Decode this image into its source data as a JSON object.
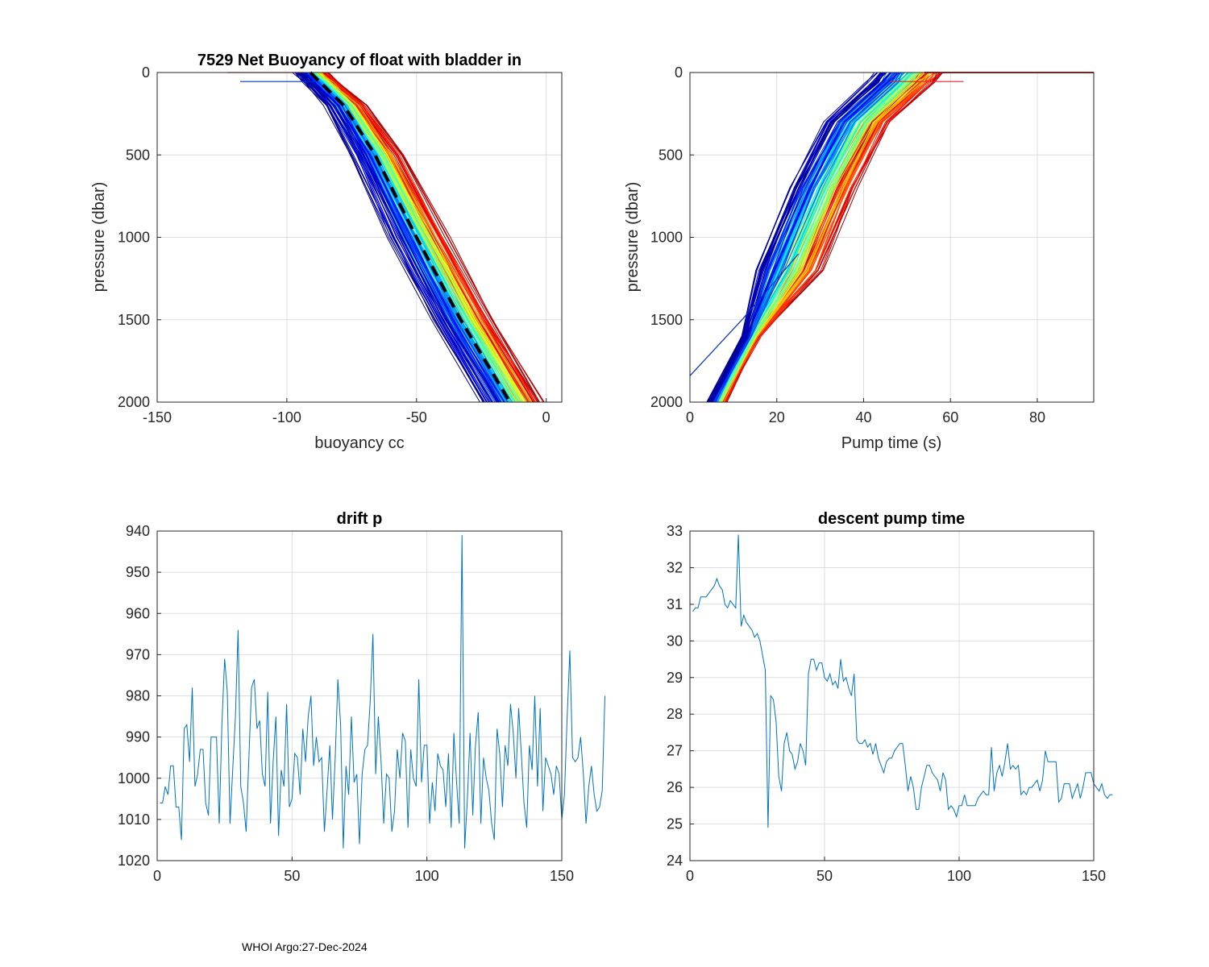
{
  "footer": "WHOI Argo:27-Dec-2024",
  "chart_data": [
    {
      "id": "buoyancy",
      "type": "line",
      "title": "7529 Net Buoyancy of float with bladder in",
      "xlabel": "buoyancy cc",
      "ylabel": "pressure (dbar)",
      "xlim": [
        -150,
        6
      ],
      "ylim": [
        0,
        2000
      ],
      "y_reversed": true,
      "xticks": [
        -150,
        -100,
        -50,
        0
      ],
      "yticks": [
        0,
        500,
        1000,
        1500,
        2000
      ],
      "grid": true,
      "series_note": "~150 profiles colored by cycle (jet colormap, early=blue, late=red)",
      "profile_nodes": {
        "p": [
          0,
          60,
          200,
          500,
          1000,
          1500,
          2000
        ],
        "mean_x": [
          -91,
          -87,
          -78,
          -66,
          -50,
          -33,
          -14
        ]
      },
      "reference_series": {
        "name": "mean",
        "style": "black dashed",
        "x": [
          -91,
          -87,
          -78,
          -66,
          -50,
          -33,
          -14
        ],
        "p": [
          0,
          60,
          200,
          500,
          1000,
          1500,
          2000
        ]
      },
      "outliers": [
        {
          "x": [
            -123,
            -93
          ],
          "p": [
            0,
            0
          ]
        },
        {
          "x": [
            -118,
            -93,
            -88
          ],
          "p": [
            55,
            55,
            55
          ]
        }
      ]
    },
    {
      "id": "pump",
      "type": "line",
      "title": "",
      "xlabel": "Pump time (s)",
      "ylabel": "pressure (dbar)",
      "xlim": [
        0,
        93
      ],
      "ylim": [
        0,
        2000
      ],
      "y_reversed": true,
      "xticks": [
        0,
        20,
        40,
        60,
        80
      ],
      "yticks": [
        0,
        500,
        1000,
        1500,
        2000
      ],
      "grid": true,
      "series_note": "~150 profiles colored by cycle (jet colormap)",
      "profile_nodes": {
        "p": [
          0,
          60,
          300,
          700,
          1200,
          1600,
          2000
        ],
        "mean_x": [
          50,
          48,
          38,
          30,
          22,
          14,
          6
        ]
      },
      "surface_line": {
        "x": [
          54,
          93
        ],
        "p": [
          0,
          0
        ]
      },
      "outliers": [
        {
          "x": [
            46,
            63
          ],
          "p": [
            55,
            55
          ]
        },
        {
          "x": [
            0,
            12,
            25
          ],
          "p": [
            1840,
            1500,
            1100
          ]
        }
      ]
    },
    {
      "id": "drift",
      "type": "line",
      "title": "drift p",
      "xlabel": "",
      "ylabel": "",
      "xlim": [
        0,
        150
      ],
      "ylim": [
        940,
        1020
      ],
      "y_reversed": true,
      "xticks": [
        0,
        50,
        100,
        150
      ],
      "yticks": [
        940,
        950,
        960,
        970,
        980,
        990,
        1000,
        1010,
        1020
      ],
      "grid": true,
      "series": [
        {
          "name": "drift p",
          "color": "#0072BD",
          "values": [
            1006,
            1006,
            1002,
            1004,
            997,
            997,
            1007,
            1007,
            1015,
            988,
            987,
            996,
            978,
            1002,
            999,
            993,
            993,
            1006,
            1009,
            990,
            990,
            990,
            1011,
            987,
            971,
            979,
            1011,
            998,
            985,
            964,
            1002,
            1006,
            1013,
            995,
            978,
            976,
            988,
            986,
            999,
            1002,
            979,
            1011,
            996,
            985,
            1014,
            998,
            1002,
            982,
            1007,
            1005,
            994,
            995,
            1004,
            988,
            996,
            985,
            980,
            997,
            990,
            996,
            995,
            1013,
            1003,
            992,
            1010,
            995,
            976,
            987,
            1017,
            997,
            1004,
            985,
            1001,
            999,
            1016,
            999,
            993,
            992,
            981,
            965,
            999,
            985,
            996,
            1011,
            999,
            1000,
            1013,
            1008,
            993,
            1000,
            989,
            991,
            1012,
            993,
            1000,
            1002,
            976,
            1001,
            992,
            992,
            1011,
            1001,
            1008,
            994,
            997,
            998,
            1007,
            994,
            1012,
            989,
            1001,
            1011,
            941,
            1017,
            1005,
            989,
            1009,
            992,
            984,
            1011,
            995,
            1000,
            1003,
            1011,
            1015,
            988,
            994,
            1007,
            992,
            997,
            982,
            989,
            1000,
            983,
            994,
            1006,
            1012,
            992,
            998,
            980,
            1002,
            983,
            1008,
            995,
            997,
            999,
            1004,
            997,
            999,
            1010,
            1004,
            985,
            969,
            995,
            996,
            995,
            990,
            999,
            1011,
            1002,
            997,
            1004,
            1008,
            1007,
            1003,
            980
          ]
        }
      ]
    },
    {
      "id": "descent",
      "type": "line",
      "title": "descent pump time",
      "xlabel": "",
      "ylabel": "",
      "xlim": [
        0,
        150
      ],
      "ylim": [
        24,
        33
      ],
      "y_reversed": false,
      "xticks": [
        0,
        50,
        100,
        150
      ],
      "yticks": [
        24,
        25,
        26,
        27,
        28,
        29,
        30,
        31,
        32,
        33
      ],
      "grid": true,
      "series": [
        {
          "name": "descent pump time",
          "color": "#0072BD",
          "values": [
            30.8,
            30.9,
            30.9,
            31.2,
            31.2,
            31.2,
            31.3,
            31.4,
            31.5,
            31.7,
            31.5,
            31.4,
            31.0,
            30.9,
            31.1,
            31.0,
            30.9,
            32.9,
            30.4,
            30.7,
            30.5,
            30.4,
            30.3,
            30.1,
            30.2,
            30.0,
            29.6,
            29.2,
            24.9,
            28.5,
            28.4,
            27.8,
            26.3,
            25.9,
            27.2,
            27.5,
            27.0,
            26.9,
            26.5,
            26.7,
            27.2,
            27.0,
            26.6,
            29.1,
            29.5,
            29.5,
            29.2,
            29.4,
            29.4,
            29.0,
            28.9,
            29.1,
            28.8,
            28.9,
            28.7,
            29.5,
            28.9,
            29.0,
            28.7,
            28.5,
            29.1,
            27.3,
            27.2,
            27.2,
            27.3,
            27.1,
            27.2,
            26.9,
            27.2,
            26.8,
            26.6,
            26.4,
            26.7,
            26.8,
            26.8,
            27.0,
            27.1,
            27.2,
            27.2,
            26.6,
            25.9,
            26.3,
            26.0,
            25.4,
            25.4,
            26.0,
            26.3,
            26.6,
            26.6,
            26.4,
            26.3,
            26.2,
            25.9,
            26.4,
            26.2,
            25.4,
            25.5,
            25.4,
            25.2,
            25.5,
            25.5,
            25.8,
            25.5,
            25.5,
            25.5,
            25.5,
            25.7,
            25.8,
            25.9,
            25.8,
            25.8,
            27.1,
            25.9,
            26.4,
            26.6,
            26.3,
            26.7,
            27.2,
            26.5,
            26.6,
            26.5,
            26.6,
            25.8,
            25.9,
            25.8,
            26.0,
            26.0,
            26.1,
            26.2,
            25.9,
            26.2,
            27.0,
            26.7,
            26.7,
            26.7,
            26.7,
            25.6,
            25.7,
            26.1,
            26.1,
            26.1,
            25.7,
            25.9,
            26.1,
            25.7,
            26.0,
            26.4,
            26.4,
            26.4,
            26.1,
            26.0,
            25.9,
            26.1,
            25.8,
            25.7,
            25.8,
            25.8
          ]
        }
      ]
    }
  ]
}
